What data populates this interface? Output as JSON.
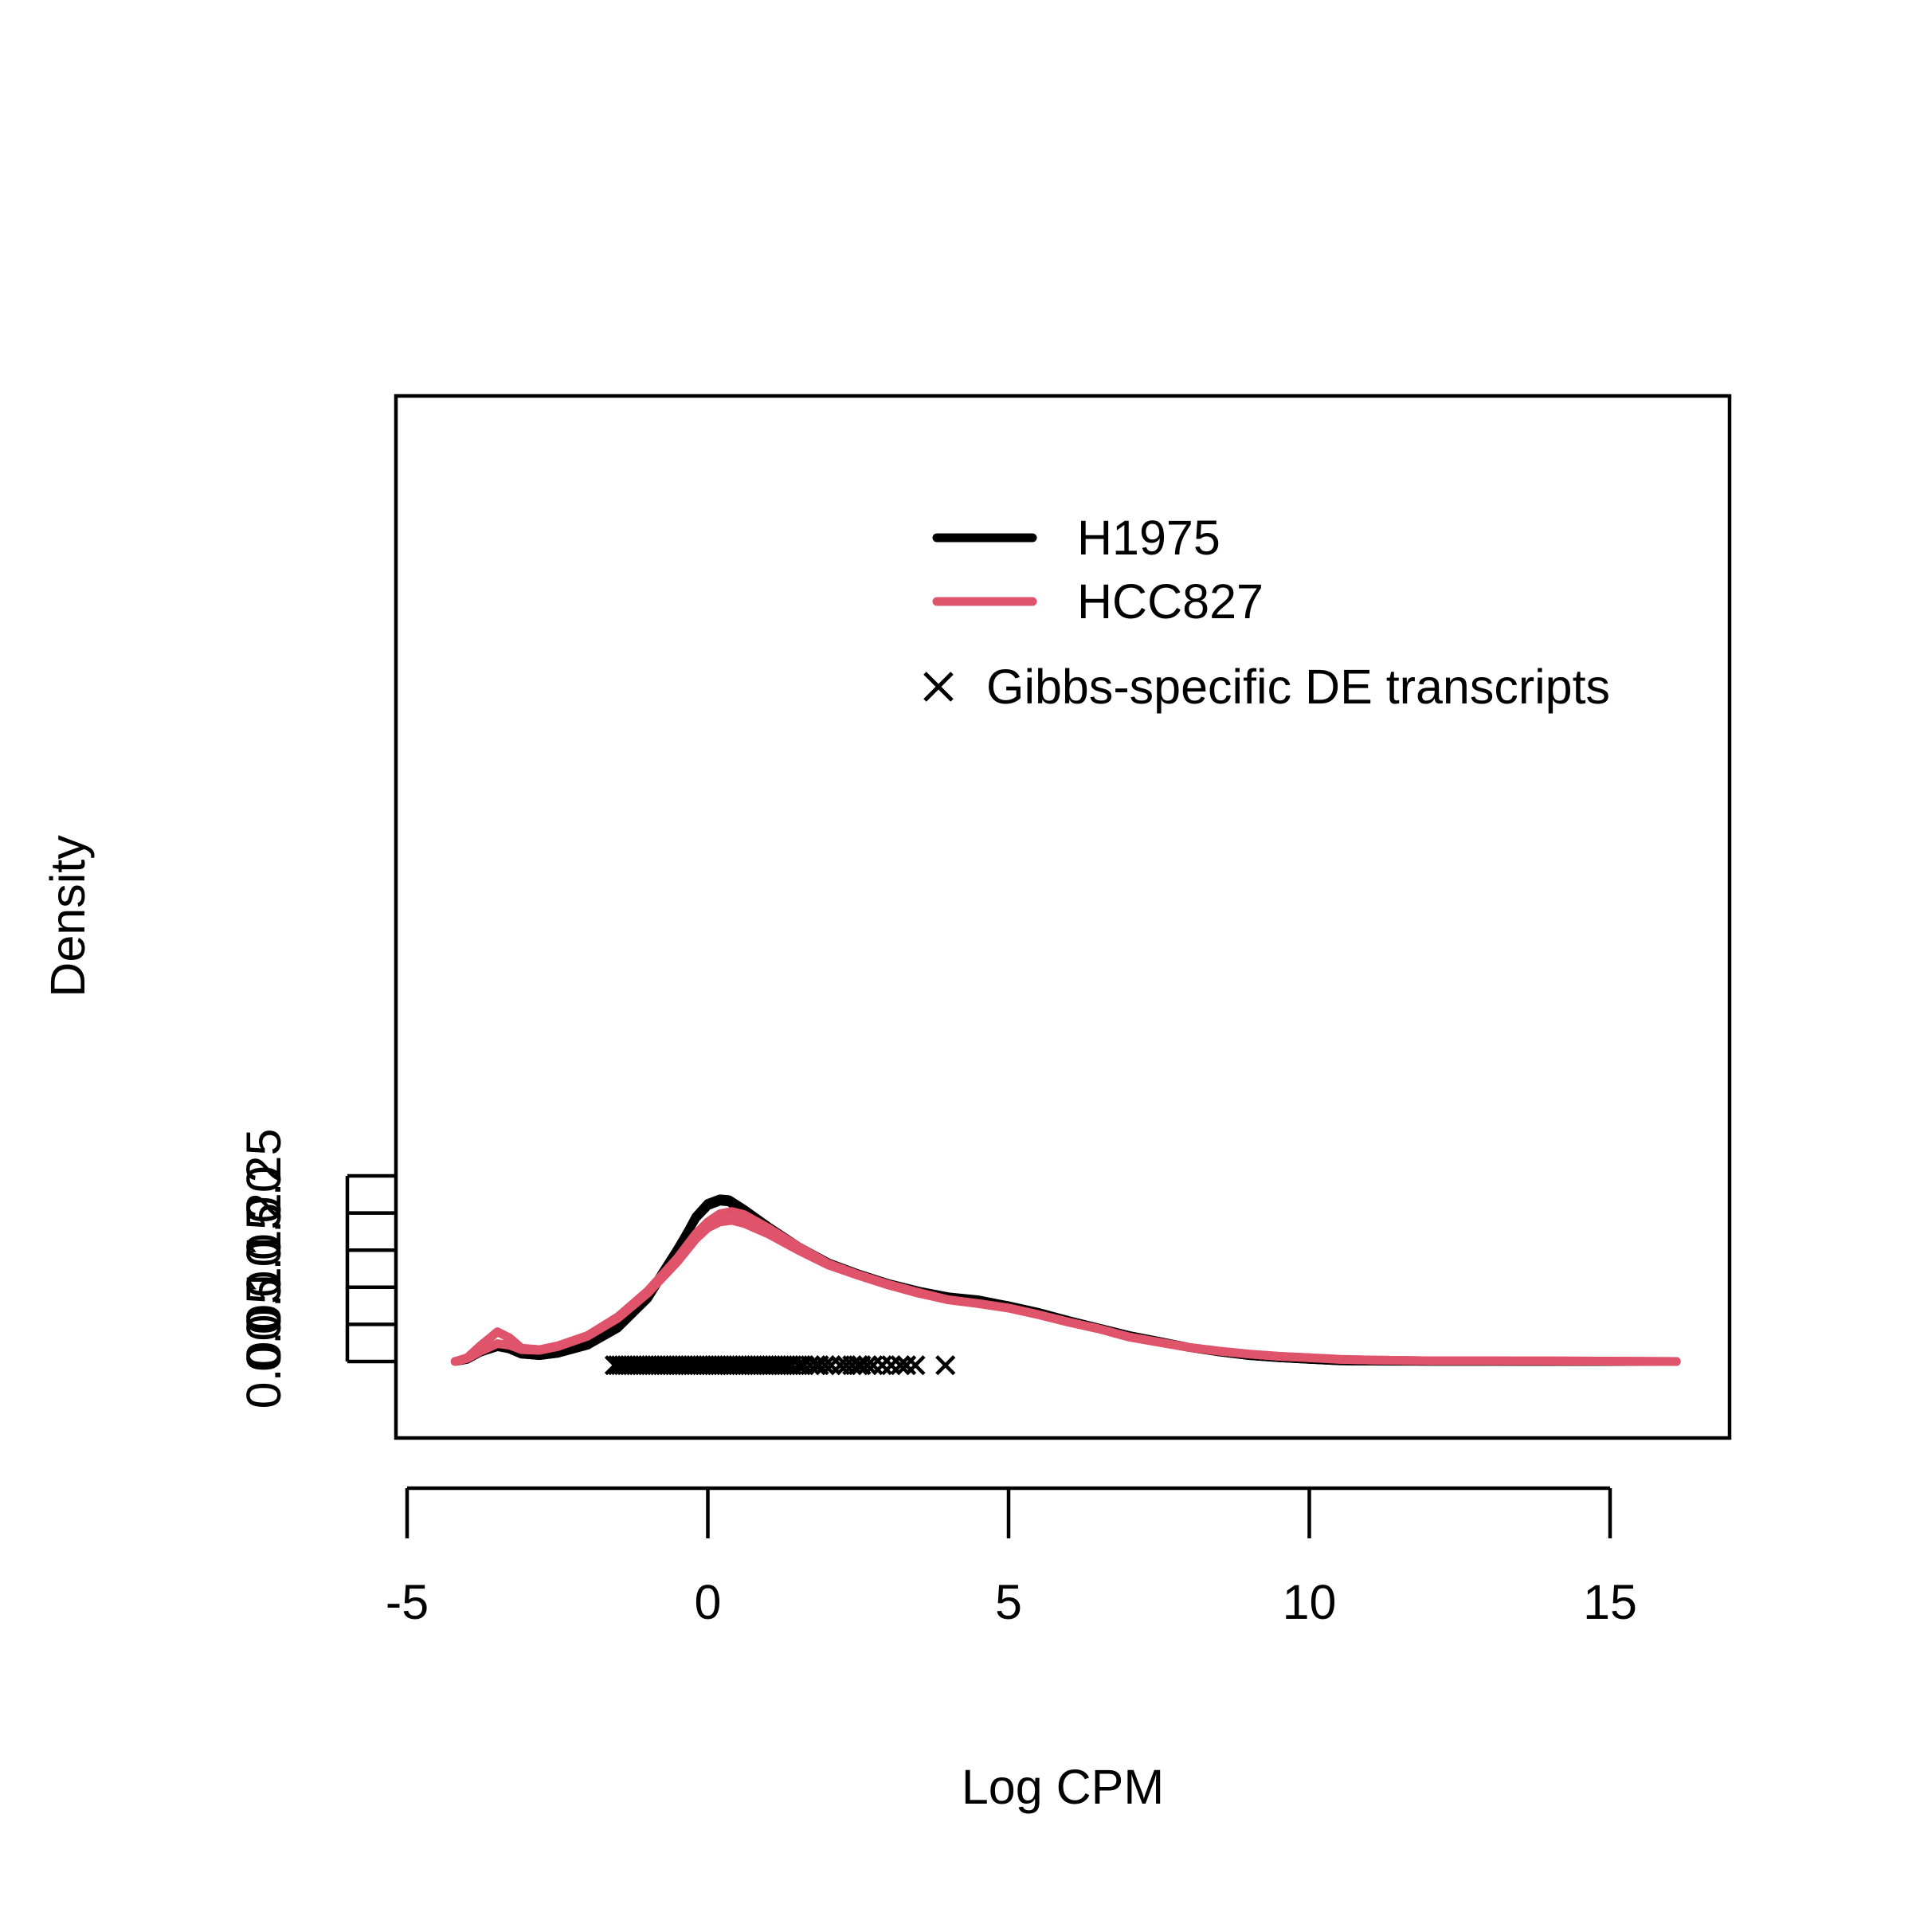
{
  "chart_data": {
    "type": "line",
    "title": "",
    "xlabel": "Log CPM",
    "ylabel": "Density",
    "xlim": [
      -5.33,
      16.8
    ],
    "ylim": [
      -0.02,
      0.26
    ],
    "xticks": [
      -5,
      0,
      5,
      10,
      15
    ],
    "xtick_labels": [
      "-5",
      "0",
      "5",
      "10",
      "15"
    ],
    "yticks": [
      0.0,
      0.05,
      0.1,
      0.15,
      0.2,
      0.25
    ],
    "ytick_labels": [
      "0.00",
      "0.05",
      "0.10",
      "0.15",
      "0.20",
      "0.25"
    ],
    "grid": false,
    "legend_position": "top-right",
    "legend": [
      {
        "label": "H1975",
        "kind": "line",
        "color": "#000000"
      },
      {
        "label": "HCC827",
        "kind": "line",
        "color": "#DF536B"
      },
      {
        "label": "Gibbs-specific DE transcripts",
        "kind": "x-marker",
        "color": "#000000"
      }
    ],
    "series": [
      {
        "name": "H1975",
        "color": "#000000",
        "points": [
          [
            -4.2,
            0.0
          ],
          [
            -4.0,
            0.003
          ],
          [
            -3.8,
            0.012
          ],
          [
            -3.5,
            0.02
          ],
          [
            -3.3,
            0.017
          ],
          [
            -3.1,
            0.01
          ],
          [
            -2.8,
            0.008
          ],
          [
            -2.5,
            0.011
          ],
          [
            -2.0,
            0.022
          ],
          [
            -1.5,
            0.045
          ],
          [
            -1.0,
            0.085
          ],
          [
            -0.5,
            0.15
          ],
          [
            -0.2,
            0.195
          ],
          [
            0.0,
            0.213
          ],
          [
            0.2,
            0.219
          ],
          [
            0.35,
            0.218
          ],
          [
            0.6,
            0.205
          ],
          [
            1.0,
            0.182
          ],
          [
            1.5,
            0.155
          ],
          [
            2.0,
            0.133
          ],
          [
            2.5,
            0.118
          ],
          [
            3.0,
            0.105
          ],
          [
            3.5,
            0.095
          ],
          [
            4.0,
            0.087
          ],
          [
            4.5,
            0.083
          ],
          [
            5.0,
            0.075
          ],
          [
            5.5,
            0.066
          ],
          [
            6.0,
            0.055
          ],
          [
            6.5,
            0.045
          ],
          [
            7.0,
            0.035
          ],
          [
            7.5,
            0.027
          ],
          [
            8.0,
            0.019
          ],
          [
            8.5,
            0.013
          ],
          [
            9.0,
            0.008
          ],
          [
            9.5,
            0.005
          ],
          [
            10.0,
            0.003
          ],
          [
            10.5,
            0.001
          ],
          [
            11.0,
            0.0005
          ],
          [
            12.0,
            0.0003
          ],
          [
            13.0,
            0.0002
          ],
          [
            14.0,
            0.0001
          ],
          [
            16.1,
            0.0
          ]
        ]
      },
      {
        "name": "H1975",
        "color": "#000000",
        "points": [
          [
            -4.2,
            0.0
          ],
          [
            -4.0,
            0.003
          ],
          [
            -3.8,
            0.012
          ],
          [
            -3.5,
            0.022
          ],
          [
            -3.3,
            0.017
          ],
          [
            -3.1,
            0.01
          ],
          [
            -2.8,
            0.008
          ],
          [
            -2.5,
            0.011
          ],
          [
            -2.0,
            0.022
          ],
          [
            -1.5,
            0.046
          ],
          [
            -1.0,
            0.088
          ],
          [
            -0.5,
            0.152
          ],
          [
            -0.2,
            0.193
          ],
          [
            0.0,
            0.21
          ],
          [
            0.2,
            0.216
          ],
          [
            0.35,
            0.215
          ],
          [
            0.6,
            0.202
          ],
          [
            1.0,
            0.18
          ],
          [
            1.5,
            0.153
          ],
          [
            2.0,
            0.132
          ],
          [
            2.5,
            0.117
          ],
          [
            3.0,
            0.104
          ],
          [
            3.5,
            0.094
          ],
          [
            4.0,
            0.087
          ],
          [
            4.5,
            0.082
          ],
          [
            5.0,
            0.075
          ],
          [
            5.5,
            0.066
          ],
          [
            6.0,
            0.055
          ],
          [
            6.5,
            0.045
          ],
          [
            7.0,
            0.035
          ],
          [
            7.5,
            0.027
          ],
          [
            8.0,
            0.019
          ],
          [
            8.5,
            0.013
          ],
          [
            9.0,
            0.008
          ],
          [
            9.5,
            0.005
          ],
          [
            10.0,
            0.003
          ],
          [
            10.5,
            0.001
          ],
          [
            11.0,
            0.0005
          ],
          [
            12.0,
            0.0003
          ],
          [
            13.0,
            0.0002
          ],
          [
            14.0,
            0.0001
          ],
          [
            16.1,
            0.0
          ]
        ]
      },
      {
        "name": "HCC827",
        "color": "#DF536B",
        "points": [
          [
            -4.2,
            0.0
          ],
          [
            -4.0,
            0.005
          ],
          [
            -3.8,
            0.02
          ],
          [
            -3.5,
            0.04
          ],
          [
            -3.3,
            0.032
          ],
          [
            -3.1,
            0.018
          ],
          [
            -2.8,
            0.016
          ],
          [
            -2.5,
            0.021
          ],
          [
            -2.0,
            0.035
          ],
          [
            -1.5,
            0.06
          ],
          [
            -1.0,
            0.095
          ],
          [
            -0.5,
            0.14
          ],
          [
            -0.2,
            0.172
          ],
          [
            0.0,
            0.188
          ],
          [
            0.2,
            0.199
          ],
          [
            0.4,
            0.202
          ],
          [
            0.6,
            0.198
          ],
          [
            1.0,
            0.18
          ],
          [
            1.5,
            0.155
          ],
          [
            2.0,
            0.132
          ],
          [
            2.5,
            0.117
          ],
          [
            3.0,
            0.104
          ],
          [
            3.5,
            0.093
          ],
          [
            4.0,
            0.083
          ],
          [
            4.5,
            0.078
          ],
          [
            5.0,
            0.072
          ],
          [
            5.5,
            0.063
          ],
          [
            6.0,
            0.053
          ],
          [
            6.5,
            0.044
          ],
          [
            7.0,
            0.033
          ],
          [
            7.5,
            0.026
          ],
          [
            8.0,
            0.019
          ],
          [
            8.5,
            0.014
          ],
          [
            9.0,
            0.01
          ],
          [
            9.5,
            0.007
          ],
          [
            10.0,
            0.005
          ],
          [
            10.5,
            0.003
          ],
          [
            11.0,
            0.002
          ],
          [
            12.0,
            0.001
          ],
          [
            13.0,
            0.001
          ],
          [
            14.0,
            0.0008
          ],
          [
            16.1,
            0.0
          ]
        ]
      },
      {
        "name": "HCC827",
        "color": "#DF536B",
        "points": [
          [
            -4.2,
            0.0
          ],
          [
            -4.0,
            0.004
          ],
          [
            -3.8,
            0.013
          ],
          [
            -3.5,
            0.024
          ],
          [
            -3.3,
            0.022
          ],
          [
            -3.1,
            0.016
          ],
          [
            -2.8,
            0.015
          ],
          [
            -2.5,
            0.02
          ],
          [
            -2.0,
            0.034
          ],
          [
            -1.5,
            0.058
          ],
          [
            -1.0,
            0.092
          ],
          [
            -0.5,
            0.135
          ],
          [
            -0.2,
            0.165
          ],
          [
            0.0,
            0.18
          ],
          [
            0.2,
            0.188
          ],
          [
            0.4,
            0.19
          ],
          [
            0.6,
            0.186
          ],
          [
            1.0,
            0.172
          ],
          [
            1.5,
            0.15
          ],
          [
            2.0,
            0.13
          ],
          [
            2.5,
            0.116
          ],
          [
            3.0,
            0.103
          ],
          [
            3.5,
            0.092
          ],
          [
            4.0,
            0.083
          ],
          [
            4.5,
            0.078
          ],
          [
            5.0,
            0.072
          ],
          [
            5.5,
            0.063
          ],
          [
            6.0,
            0.053
          ],
          [
            6.5,
            0.044
          ],
          [
            7.0,
            0.033
          ],
          [
            7.5,
            0.026
          ],
          [
            8.0,
            0.019
          ],
          [
            8.5,
            0.014
          ],
          [
            9.0,
            0.01
          ],
          [
            9.5,
            0.007
          ],
          [
            10.0,
            0.005
          ],
          [
            10.5,
            0.003
          ],
          [
            11.0,
            0.002
          ],
          [
            12.0,
            0.001
          ],
          [
            13.0,
            0.001
          ],
          [
            14.0,
            0.0008
          ],
          [
            16.1,
            0.0
          ]
        ]
      }
    ],
    "markers": {
      "name": "Gibbs-specific DE transcripts",
      "y": -0.005,
      "x": [
        -1.55,
        -1.5,
        -1.45,
        -1.4,
        -1.35,
        -1.3,
        -1.25,
        -1.2,
        -1.15,
        -1.1,
        -1.05,
        -1.0,
        -0.95,
        -0.9,
        -0.85,
        -0.8,
        -0.75,
        -0.7,
        -0.65,
        -0.6,
        -0.55,
        -0.5,
        -0.45,
        -0.4,
        -0.35,
        -0.3,
        -0.25,
        -0.2,
        -0.15,
        -0.1,
        -0.05,
        0.0,
        0.05,
        0.1,
        0.15,
        0.2,
        0.25,
        0.3,
        0.35,
        0.4,
        0.45,
        0.5,
        0.55,
        0.6,
        0.65,
        0.7,
        0.75,
        0.8,
        0.85,
        0.9,
        0.95,
        1.0,
        1.05,
        1.1,
        1.15,
        1.2,
        1.25,
        1.3,
        1.35,
        1.4,
        1.5,
        1.55,
        1.6,
        1.7,
        1.8,
        1.85,
        1.95,
        2.05,
        2.2,
        2.3,
        2.4,
        2.5,
        2.55,
        2.65,
        2.75,
        2.9,
        3.05,
        3.2,
        3.3,
        3.45,
        3.95
      ]
    }
  }
}
